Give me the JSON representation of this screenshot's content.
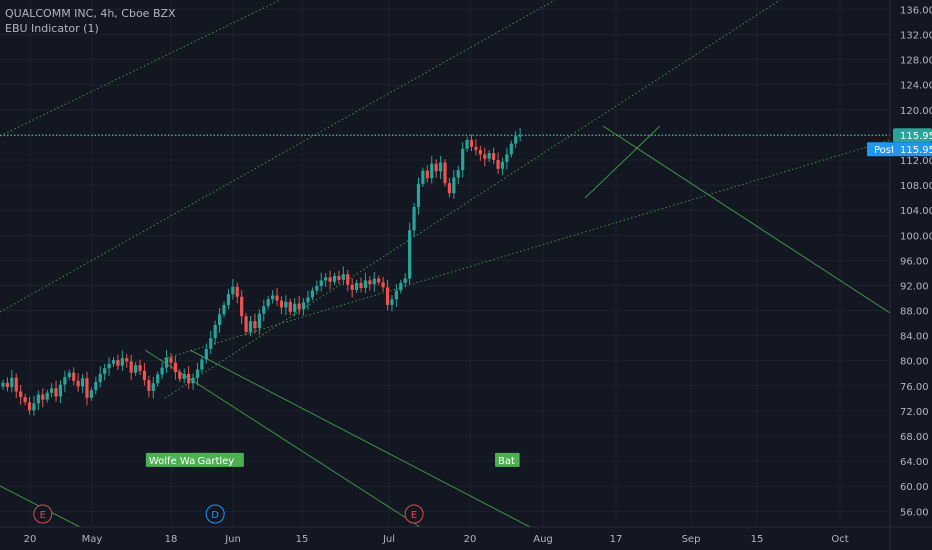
{
  "legend": {
    "symbol_line": "QUALCOMM INC, 4h, Cboe BZX",
    "indicator_line": "EBU Indicator (1)"
  },
  "colors": {
    "background": "#131722",
    "grid": "#1e222d",
    "up": "#26a69a",
    "down": "#ef5350",
    "pattern_line": "#4caf50",
    "price_line": "#4fd1c5",
    "price_badge": "#2196f3",
    "axis_text": "#b2b5be",
    "event_red": "#e0484b",
    "event_blue": "#2196f3"
  },
  "chart_data": {
    "type": "candlestick",
    "timeframe": "4h",
    "x_tick_labels": [
      "20",
      "May",
      "18",
      "Jun",
      "15",
      "Jul",
      "20",
      "Aug",
      "17",
      "Sep",
      "15",
      "Oct"
    ],
    "y_tick_labels": [
      "136.00",
      "132.00",
      "128.00",
      "124.00",
      "120.00",
      "116.00",
      "112.00",
      "108.00",
      "104.00",
      "100.00",
      "96.00",
      "92.00",
      "88.00",
      "84.00",
      "80.00",
      "76.00",
      "72.00",
      "68.00",
      "64.00",
      "60.00",
      "56.00"
    ],
    "ylim": [
      53.5,
      137.5
    ],
    "last_price": {
      "label": "115.95",
      "value": 115.95
    },
    "post_price": {
      "prefix": "Post",
      "label": "115.95",
      "value": 115.95
    },
    "closes": [
      76.5,
      75.8,
      77.3,
      75.1,
      74.2,
      73.4,
      72.1,
      73.2,
      74.6,
      73.8,
      74.9,
      75.6,
      74.3,
      76.2,
      77.4,
      78.1,
      76.8,
      75.9,
      77.2,
      74.1,
      75.3,
      76.6,
      77.9,
      78.8,
      79.5,
      80.1,
      79.2,
      80.4,
      79.9,
      78.1,
      79.3,
      78.4,
      76.9,
      75.2,
      76.4,
      77.8,
      78.9,
      80.5,
      79.7,
      78.2,
      77.1,
      77.9,
      76.4,
      77.3,
      78.6,
      80.2,
      81.9,
      83.6,
      85.7,
      87.4,
      88.9,
      90.6,
      91.8,
      90.2,
      87.1,
      84.6,
      86.3,
      85.2,
      87.5,
      88.7,
      89.8,
      90.4,
      89.6,
      88.5,
      89.4,
      87.8,
      89.1,
      88.2,
      89.3,
      90.1,
      91.2,
      91.9,
      92.8,
      93.3,
      92.6,
      93.5,
      92.9,
      93.8,
      92.1,
      91.3,
      92.4,
      91.6,
      92.8,
      92.2,
      93.1,
      92.5,
      91.7,
      88.9,
      89.8,
      91.2,
      92.4,
      93.1,
      100.8,
      104.5,
      108.2,
      110.3,
      109.1,
      111.4,
      110.2,
      111.6,
      108.3,
      106.7,
      109.2,
      110.4,
      113.8,
      115.2,
      114.1,
      113.6,
      112.9,
      112.2,
      113.1,
      112.0,
      110.6,
      111.7,
      112.9,
      114.6,
      115.8,
      115.9
    ],
    "event_markers": [
      {
        "label": "E",
        "kind": "earnings",
        "index": 9
      },
      {
        "label": "D",
        "kind": "dividend",
        "index": 48
      },
      {
        "label": "E",
        "kind": "earnings",
        "index": 93
      }
    ],
    "pattern_labels": [
      {
        "label": "Wolfe Wave",
        "index": 33,
        "value": 64.2
      },
      {
        "label": "Gartley",
        "index": 44,
        "value": 64.2
      },
      {
        "label": "Bat",
        "index": 112,
        "value": 64.2
      }
    ]
  }
}
